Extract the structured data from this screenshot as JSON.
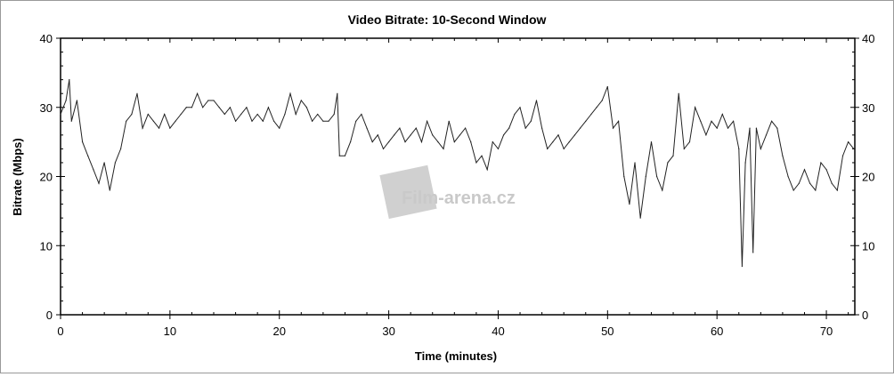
{
  "chart_data": {
    "type": "line",
    "title": "Video Bitrate: 10-Second Window",
    "xlabel": "Time (minutes)",
    "ylabel": "Bitrate (Mbps)",
    "xlim": [
      0,
      72.6
    ],
    "ylim": [
      0,
      40
    ],
    "xticks": [
      0,
      10,
      20,
      30,
      40,
      50,
      60,
      70
    ],
    "yticks": [
      0,
      10,
      20,
      30,
      40
    ],
    "grid": false,
    "line_color": "#222222",
    "watermark": "Film-arena.cz",
    "x": [
      0,
      0.5,
      0.8,
      1,
      1.5,
      2,
      2.5,
      3,
      3.5,
      4,
      4.5,
      5,
      5.5,
      6,
      6.5,
      7,
      7.5,
      8,
      8.5,
      9,
      9.5,
      10,
      10.5,
      11,
      11.5,
      12,
      12.5,
      13,
      13.5,
      14,
      14.5,
      15,
      15.5,
      16,
      16.5,
      17,
      17.5,
      18,
      18.5,
      19,
      19.5,
      20,
      20.5,
      21,
      21.5,
      22,
      22.5,
      23,
      23.5,
      24,
      24.5,
      25,
      25.3,
      25.5,
      26,
      26.5,
      27,
      27.5,
      28,
      28.5,
      29,
      29.5,
      30,
      30.5,
      31,
      31.5,
      32,
      32.5,
      33,
      33.5,
      34,
      34.5,
      35,
      35.5,
      36,
      36.5,
      37,
      37.5,
      38,
      38.5,
      39,
      39.5,
      40,
      40.5,
      41,
      41.5,
      42,
      42.5,
      43,
      43.5,
      44,
      44.5,
      45,
      45.5,
      46,
      46.5,
      47,
      47.5,
      48,
      48.5,
      49,
      49.5,
      50,
      50.5,
      51,
      51.5,
      52,
      52.5,
      53,
      53.5,
      54,
      54.5,
      55,
      55.5,
      56,
      56.5,
      57,
      57.5,
      58,
      58.5,
      59,
      59.5,
      60,
      60.5,
      61,
      61.5,
      62,
      62.3,
      62.6,
      63,
      63.3,
      63.6,
      64,
      64.5,
      65,
      65.5,
      66,
      66.5,
      67,
      67.5,
      68,
      68.5,
      69,
      69.5,
      70,
      70.5,
      71,
      71.5,
      72,
      72.5
    ],
    "y": [
      29,
      31,
      34,
      28,
      31,
      25,
      23,
      21,
      19,
      22,
      18,
      22,
      24,
      28,
      29,
      32,
      27,
      29,
      28,
      27,
      29,
      27,
      28,
      29,
      30,
      30,
      32,
      30,
      31,
      31,
      30,
      29,
      30,
      28,
      29,
      30,
      28,
      29,
      28,
      30,
      28,
      27,
      29,
      32,
      29,
      31,
      30,
      28,
      29,
      28,
      28,
      29,
      32,
      23,
      23,
      25,
      28,
      29,
      27,
      25,
      26,
      24,
      25,
      26,
      27,
      25,
      26,
      27,
      25,
      28,
      26,
      25,
      24,
      28,
      25,
      26,
      27,
      25,
      22,
      23,
      21,
      25,
      24,
      26,
      27,
      29,
      30,
      27,
      28,
      31,
      27,
      24,
      25,
      26,
      24,
      25,
      26,
      27,
      28,
      29,
      30,
      31,
      33,
      27,
      28,
      20,
      16,
      22,
      14,
      20,
      25,
      20,
      18,
      22,
      23,
      32,
      24,
      25,
      30,
      28,
      26,
      28,
      27,
      29,
      27,
      28,
      24,
      7,
      22,
      27,
      9,
      27,
      24,
      26,
      28,
      27,
      23,
      20,
      18,
      19,
      21,
      19,
      18,
      22,
      21,
      19,
      18,
      23,
      25,
      24
    ]
  }
}
